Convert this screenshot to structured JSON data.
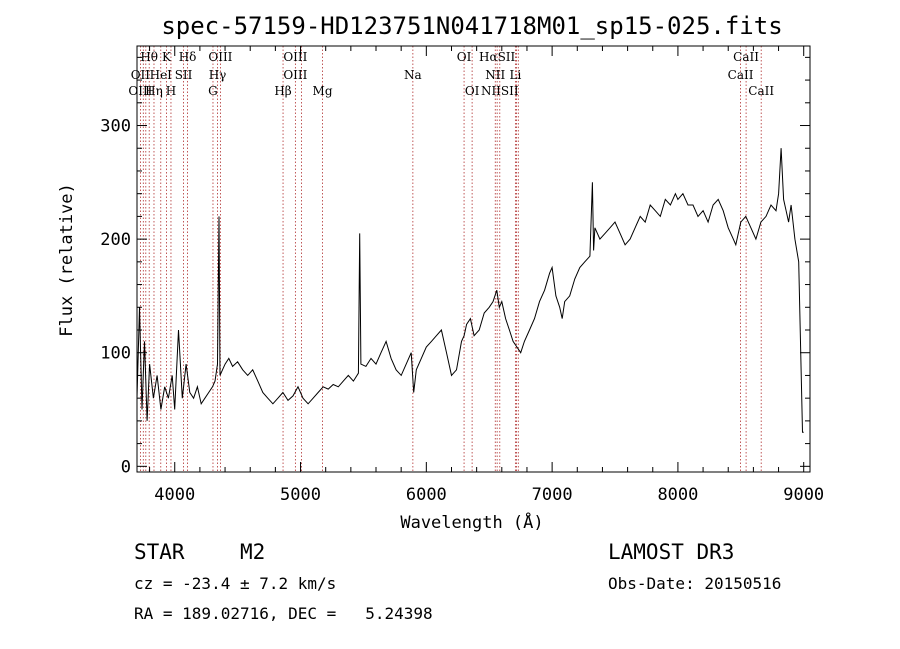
{
  "chart_data": {
    "type": "line",
    "title": "spec-57159-HD123751N041718M01_sp15-025.fits",
    "xlabel": "Wavelength (Å)",
    "ylabel": "Flux (relative)",
    "xlim": [
      3700,
      9050
    ],
    "ylim": [
      -5,
      370
    ],
    "xticks": [
      4000,
      5000,
      6000,
      7000,
      8000,
      9000
    ],
    "yticks": [
      0,
      100,
      200,
      300
    ],
    "grid": false,
    "series": [
      {
        "x": [
          3700,
          3720,
          3740,
          3760,
          3780,
          3800,
          3830,
          3860,
          3890,
          3920,
          3950,
          3980,
          4000,
          4030,
          4060,
          4090,
          4120,
          4150,
          4180,
          4210,
          4240,
          4270,
          4300,
          4320,
          4340,
          4352,
          4360,
          4380,
          4400,
          4430,
          4460,
          4500,
          4540,
          4580,
          4620,
          4660,
          4700,
          4740,
          4780,
          4820,
          4860,
          4900,
          4940,
          4980,
          5020,
          5060,
          5100,
          5140,
          5180,
          5220,
          5260,
          5300,
          5340,
          5380,
          5420,
          5460,
          5470,
          5480,
          5520,
          5560,
          5600,
          5640,
          5680,
          5720,
          5760,
          5800,
          5840,
          5880,
          5900,
          5920,
          5960,
          6000,
          6040,
          6080,
          6120,
          6160,
          6200,
          6240,
          6280,
          6300,
          6320,
          6350,
          6380,
          6420,
          6460,
          6500,
          6530,
          6560,
          6580,
          6600,
          6630,
          6660,
          6690,
          6720,
          6750,
          6780,
          6820,
          6860,
          6900,
          6940,
          6980,
          7000,
          7030,
          7060,
          7080,
          7100,
          7140,
          7180,
          7220,
          7260,
          7300,
          7320,
          7330,
          7340,
          7380,
          7420,
          7460,
          7500,
          7540,
          7580,
          7620,
          7660,
          7700,
          7740,
          7780,
          7820,
          7860,
          7900,
          7940,
          7980,
          8000,
          8040,
          8080,
          8120,
          8160,
          8200,
          8240,
          8280,
          8320,
          8360,
          8400,
          8440,
          8460,
          8480,
          8500,
          8540,
          8580,
          8620,
          8660,
          8700,
          8740,
          8780,
          8800,
          8820,
          8840,
          8860,
          8880,
          8900,
          8930,
          8960,
          8990,
          9000
        ],
        "y": [
          60,
          140,
          50,
          110,
          40,
          90,
          60,
          80,
          50,
          70,
          60,
          80,
          50,
          120,
          60,
          90,
          65,
          60,
          70,
          55,
          60,
          65,
          70,
          75,
          90,
          220,
          80,
          85,
          90,
          95,
          88,
          92,
          85,
          80,
          85,
          75,
          65,
          60,
          55,
          60,
          65,
          58,
          62,
          70,
          60,
          55,
          60,
          65,
          70,
          68,
          72,
          70,
          75,
          80,
          75,
          82,
          205,
          90,
          88,
          95,
          90,
          100,
          110,
          95,
          85,
          80,
          90,
          100,
          65,
          85,
          95,
          105,
          110,
          115,
          120,
          100,
          80,
          85,
          110,
          115,
          125,
          130,
          115,
          120,
          135,
          140,
          145,
          155,
          140,
          145,
          130,
          120,
          110,
          105,
          100,
          110,
          120,
          130,
          145,
          155,
          170,
          175,
          150,
          140,
          130,
          145,
          150,
          165,
          175,
          180,
          185,
          250,
          190,
          210,
          200,
          205,
          210,
          215,
          205,
          195,
          200,
          210,
          220,
          215,
          230,
          225,
          220,
          235,
          230,
          240,
          235,
          240,
          230,
          230,
          220,
          225,
          215,
          230,
          235,
          225,
          210,
          200,
          195,
          205,
          215,
          220,
          210,
          200,
          215,
          220,
          230,
          225,
          240,
          280,
          235,
          225,
          215,
          230,
          200,
          180,
          30,
          30
        ]
      }
    ],
    "line_labels": [
      {
        "text": "Hθ",
        "x": 3797,
        "row": 0
      },
      {
        "text": "K",
        "x": 3934,
        "row": 0
      },
      {
        "text": "Hδ",
        "x": 4102,
        "row": 0
      },
      {
        "text": "OIII",
        "x": 4363,
        "row": 0
      },
      {
        "text": "OIII",
        "x": 4959,
        "row": 0
      },
      {
        "text": "OI",
        "x": 6300,
        "row": 0
      },
      {
        "text": "HαSII",
        "x": 6563,
        "row": 0
      },
      {
        "text": "CaII",
        "x": 8542,
        "row": 0
      },
      {
        "text": "OII",
        "x": 3727,
        "row": 1
      },
      {
        "text": "HeI",
        "x": 3889,
        "row": 1
      },
      {
        "text": "SII",
        "x": 4070,
        "row": 1
      },
      {
        "text": "Hγ",
        "x": 4340,
        "row": 1
      },
      {
        "text": "OIII",
        "x": 4959,
        "row": 1
      },
      {
        "text": "Na",
        "x": 5893,
        "row": 1
      },
      {
        "text": "NII",
        "x": 6548,
        "row": 1
      },
      {
        "text": "Li",
        "x": 6708,
        "row": 1
      },
      {
        "text": "CaII",
        "x": 8498,
        "row": 1
      },
      {
        "text": "OIII",
        "x": 3727,
        "row": 2
      },
      {
        "text": "Hη",
        "x": 3835,
        "row": 2
      },
      {
        "text": "H",
        "x": 3970,
        "row": 2
      },
      {
        "text": "G",
        "x": 4304,
        "row": 2
      },
      {
        "text": "Hβ",
        "x": 4861,
        "row": 2
      },
      {
        "text": "Mg",
        "x": 5175,
        "row": 2
      },
      {
        "text": "OI",
        "x": 6364,
        "row": 2
      },
      {
        "text": "NIISII",
        "x": 6584,
        "row": 2
      },
      {
        "text": "CaII",
        "x": 8662,
        "row": 2
      }
    ],
    "line_positions": [
      3727,
      3750,
      3770,
      3797,
      3835,
      3889,
      3934,
      3970,
      4070,
      4102,
      4304,
      4340,
      4363,
      4861,
      4959,
      5007,
      5175,
      5893,
      6300,
      6364,
      6548,
      6563,
      6584,
      6708,
      6717,
      6731,
      8498,
      8542,
      8662
    ]
  },
  "info": {
    "class": "STAR",
    "subclass": "M2",
    "survey": "LAMOST DR3",
    "cz": "cz = -23.4 ± 7.2 km/s",
    "obs_date": "Obs-Date: 20150516",
    "coords": "RA = 189.02716, DEC =   5.24398"
  }
}
